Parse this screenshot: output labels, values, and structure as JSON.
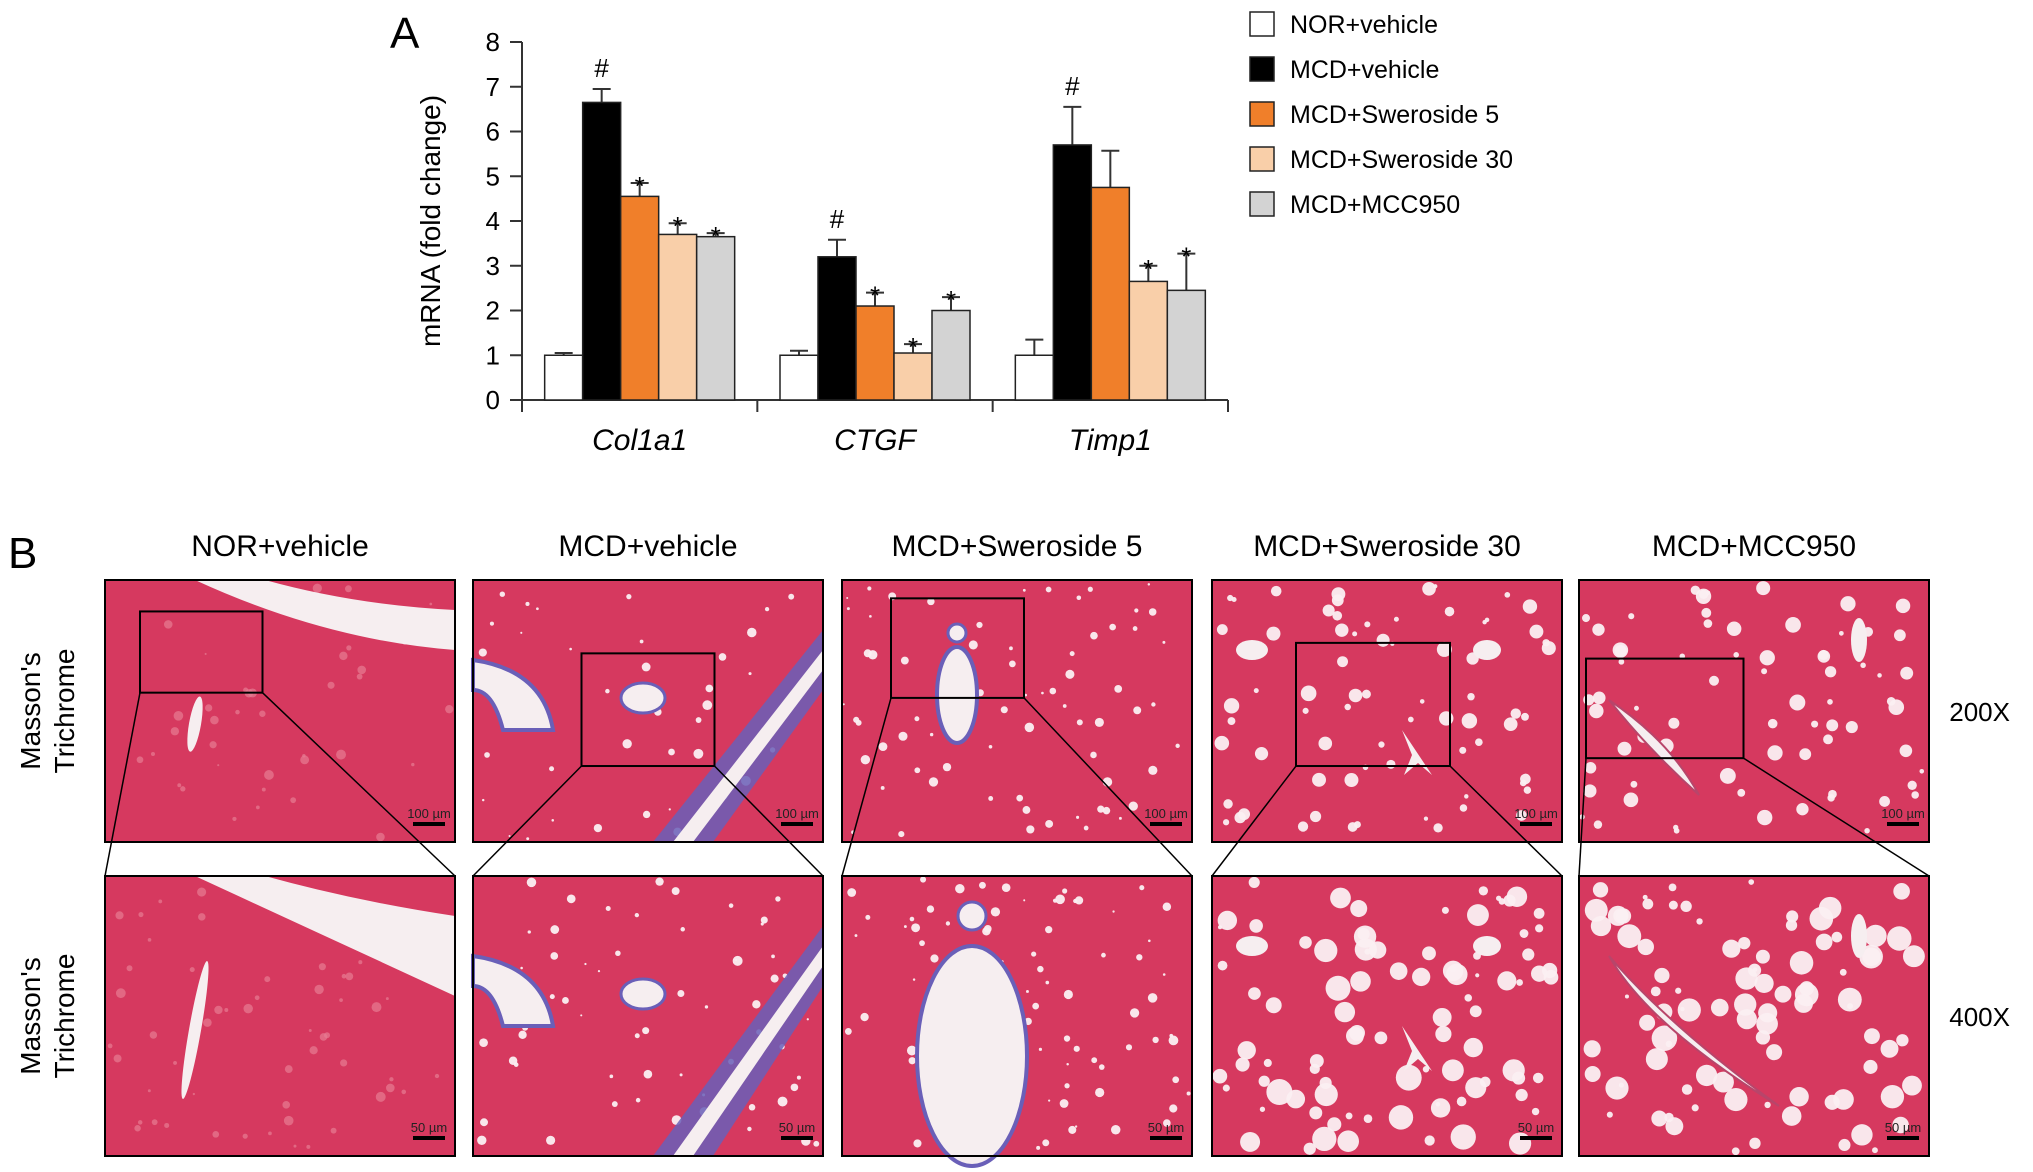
{
  "panel_a": {
    "letter": "A"
  },
  "panel_b": {
    "letter": "B",
    "groups": [
      "NOR+vehicle",
      "MCD+vehicle",
      "MCD+Sweroside 5",
      "MCD+Sweroside 30",
      "MCD+MCC950"
    ],
    "stain_label_line1": "Masson's",
    "stain_label_line2": "Trichrome",
    "magnifications": [
      "200X",
      "400X"
    ],
    "scale_bars": [
      "100 µm",
      "50 µm"
    ],
    "colors": {
      "tissue": "#d6395f",
      "collagen": "#6a5fb8",
      "lumen": "#f6eef0"
    }
  },
  "chart_data": {
    "type": "bar",
    "categories": [
      "Col1a1",
      "CTGF",
      "Timp1"
    ],
    "ylabel": "mRNA (fold change)",
    "ylim": [
      0,
      8
    ],
    "yticks": [
      "0",
      "1",
      "2",
      "3",
      "4",
      "5",
      "6",
      "7",
      "8"
    ],
    "legend_position": "top-right",
    "series": [
      {
        "name": "NOR+vehicle",
        "color": "#ffffff",
        "values": [
          1.0,
          1.0,
          1.0
        ],
        "errors": [
          0.05,
          0.1,
          0.35
        ],
        "marks": [
          "",
          "",
          ""
        ]
      },
      {
        "name": "MCD+vehicle",
        "color": "#000000",
        "values": [
          6.65,
          3.2,
          5.7
        ],
        "errors": [
          0.3,
          0.38,
          0.85
        ],
        "marks": [
          "#",
          "#",
          "#"
        ]
      },
      {
        "name": "MCD+Sweroside 5",
        "color": "#f07f2a",
        "values": [
          4.55,
          2.1,
          4.75
        ],
        "errors": [
          0.3,
          0.3,
          0.82
        ],
        "marks": [
          "*",
          "*",
          ""
        ]
      },
      {
        "name": "MCD+Sweroside 30",
        "color": "#f9cfa9",
        "values": [
          3.7,
          1.05,
          2.65
        ],
        "errors": [
          0.25,
          0.2,
          0.35
        ],
        "marks": [
          "*",
          "*",
          "*"
        ]
      },
      {
        "name": "MCD+MCC950",
        "color": "#d3d3d3",
        "values": [
          3.65,
          2.0,
          2.45
        ],
        "errors": [
          0.08,
          0.3,
          0.82
        ],
        "marks": [
          "*",
          "*",
          "*"
        ]
      }
    ]
  }
}
